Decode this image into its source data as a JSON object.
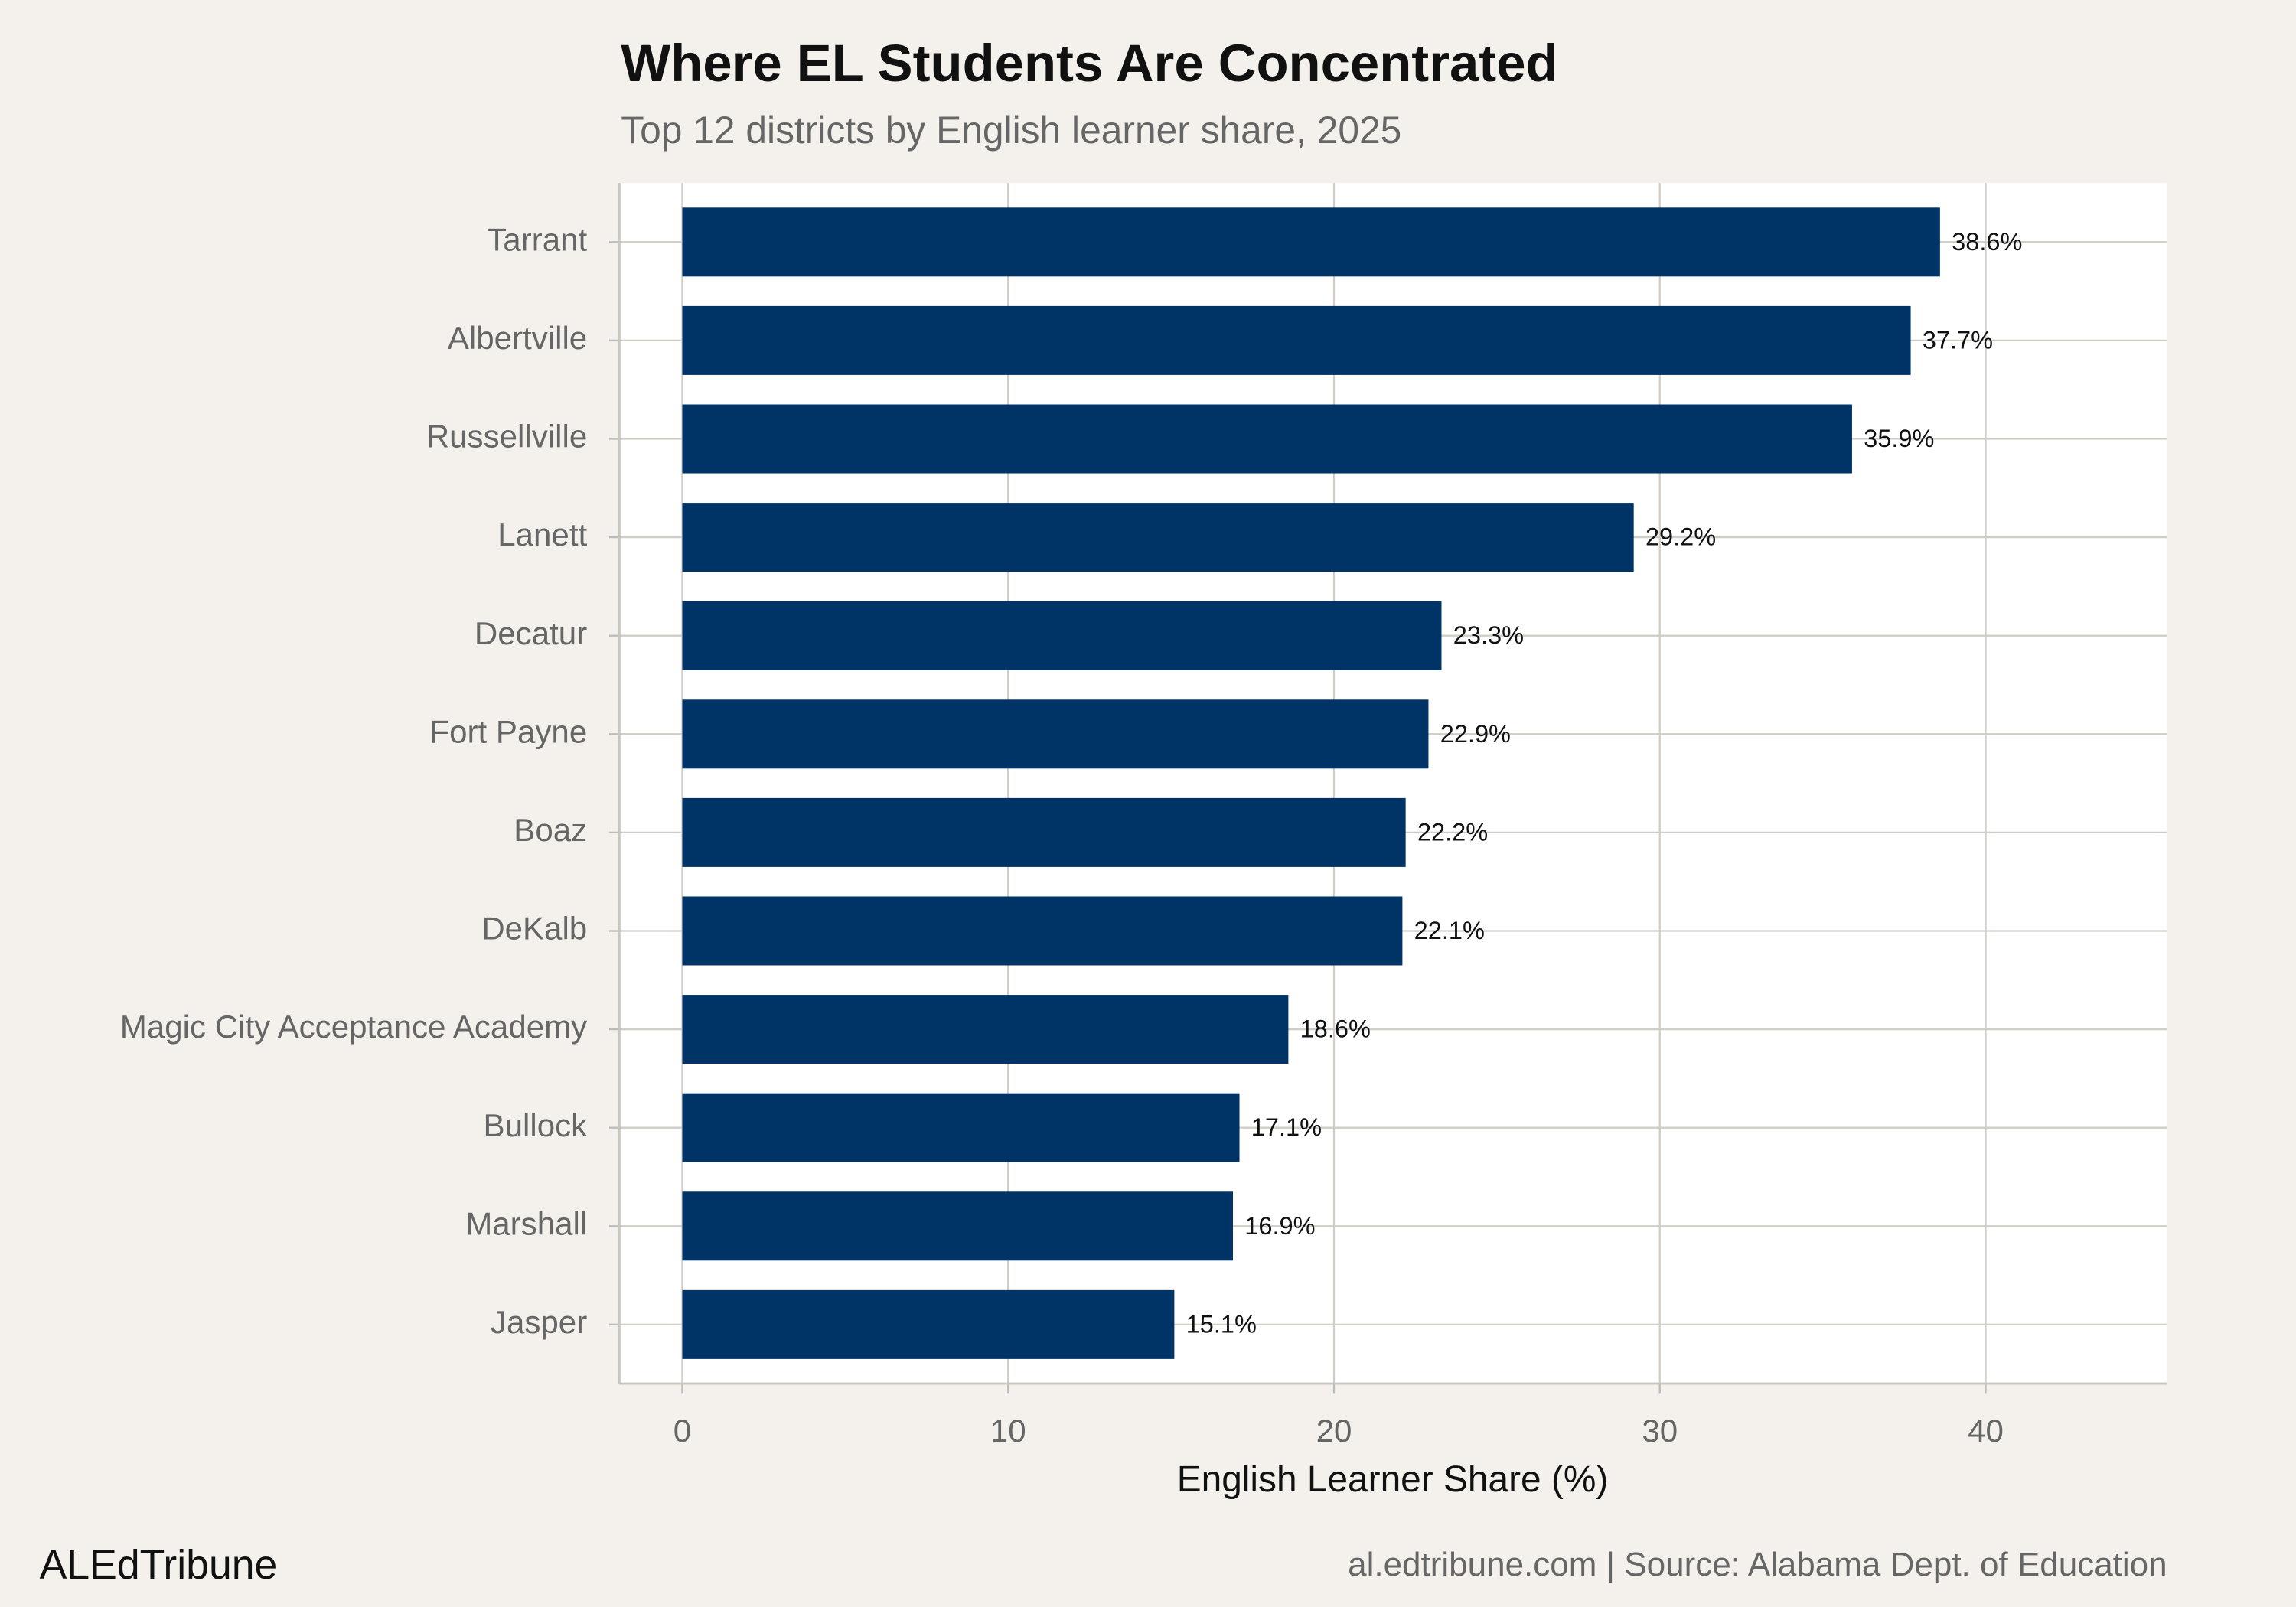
{
  "chart_data": {
    "type": "bar",
    "orientation": "horizontal",
    "title": "Where EL Students Are Concentrated",
    "subtitle": "Top 12 districts by English learner share, 2025",
    "x_label": "English Learner Share (%)",
    "brand": "ALEdTribune",
    "source": "al.edtribune.com | Source: Alabama Dept. of Education",
    "categories": [
      "Tarrant",
      "Albertville",
      "Russellville",
      "Lanett",
      "Decatur",
      "Fort Payne",
      "Boaz",
      "DeKalb",
      "Magic City Acceptance Academy",
      "Bullock",
      "Marshall",
      "Jasper"
    ],
    "values": [
      38.6,
      37.7,
      35.9,
      29.2,
      23.3,
      22.9,
      22.2,
      22.1,
      18.6,
      17.1,
      16.9,
      15.1
    ],
    "value_labels": [
      "38.6%",
      "37.7%",
      "35.9%",
      "29.2%",
      "23.3%",
      "22.9%",
      "22.2%",
      "22.1%",
      "18.6%",
      "17.1%",
      "16.9%",
      "15.1%"
    ],
    "color": "#003366",
    "xlim": [
      -1.93,
      45.57
    ],
    "xticks": [
      0,
      10,
      20,
      30,
      40
    ],
    "grid": true
  }
}
